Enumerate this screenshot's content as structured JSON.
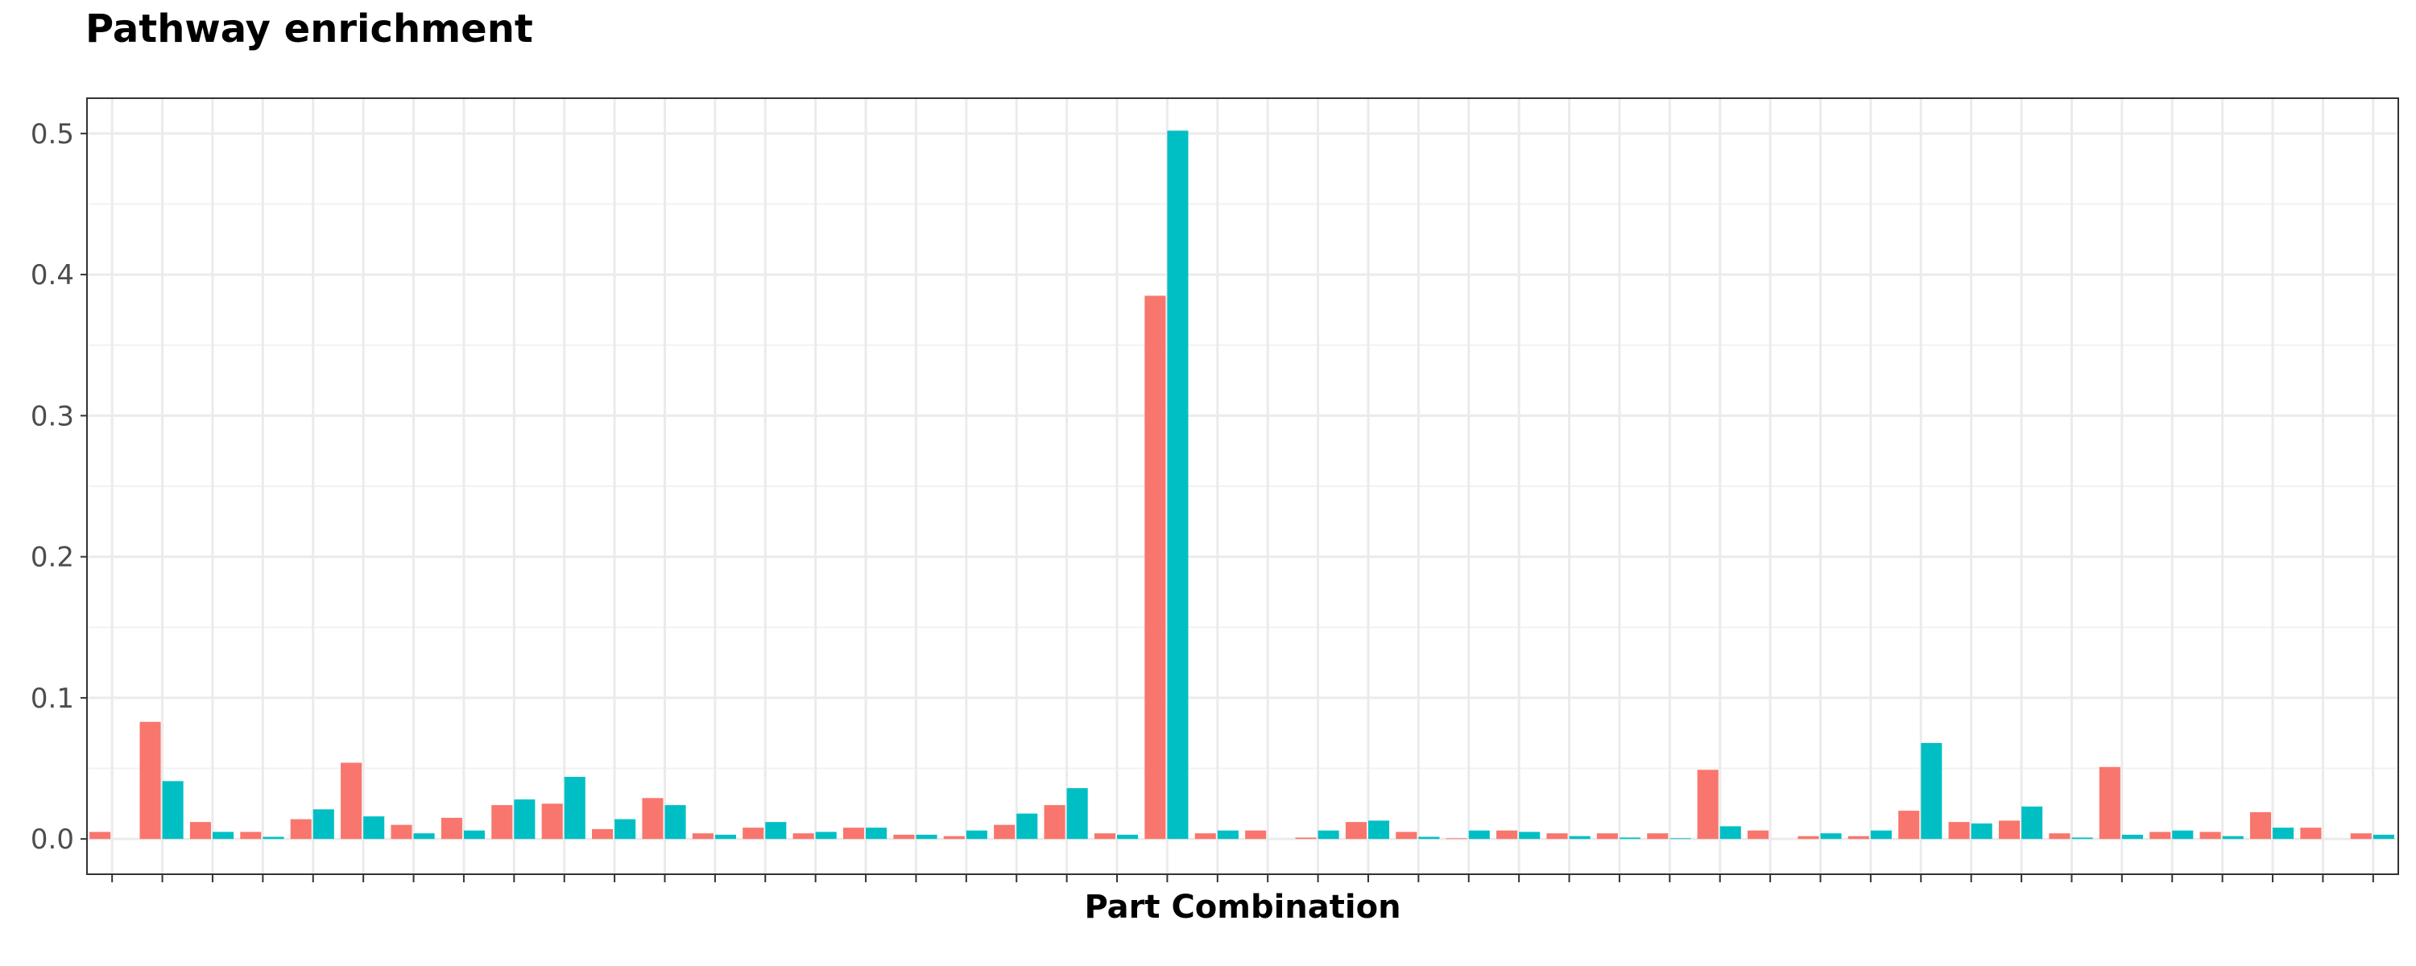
{
  "chart_data": {
    "type": "bar",
    "title": "Pathway enrichment",
    "xlabel": "Part Combination",
    "ylabel": "",
    "ylim": [
      -0.025,
      0.525
    ],
    "yticks": [
      "0.0",
      "0.1",
      "0.2",
      "0.3",
      "0.4",
      "0.5"
    ],
    "ytick_values": [
      0,
      0.1,
      0.2,
      0.3,
      0.4,
      0.5
    ],
    "grid": true,
    "legend": "none",
    "n_categories": 46,
    "series": [
      {
        "color": "#F8766D",
        "values": [
          0.005,
          0.083,
          0.012,
          0.005,
          0.014,
          0.054,
          0.01,
          0.015,
          0.024,
          0.025,
          0.007,
          0.029,
          0.004,
          0.008,
          0.004,
          0.008,
          0.003,
          0.002,
          0.01,
          0.024,
          0.004,
          0.385,
          0.004,
          0.006,
          0.001,
          0.012,
          0.005,
          0.0005,
          0.006,
          0.004,
          0.004,
          0.004,
          0.049,
          0.006,
          0.002,
          0.002,
          0.02,
          0.012,
          0.013,
          0.004,
          0.051,
          0.005,
          0.005,
          0.019,
          0.008,
          0.004
        ]
      },
      {
        "color": "#00BFC4",
        "values": [
          0.0,
          0.041,
          0.005,
          0.0015,
          0.021,
          0.016,
          0.004,
          0.006,
          0.028,
          0.044,
          0.014,
          0.024,
          0.003,
          0.012,
          0.005,
          0.008,
          0.003,
          0.006,
          0.018,
          0.036,
          0.003,
          0.502,
          0.006,
          0.0,
          0.006,
          0.013,
          0.0015,
          0.006,
          0.005,
          0.002,
          0.001,
          0.0005,
          0.009,
          0.0,
          0.004,
          0.006,
          0.068,
          0.011,
          0.023,
          0.001,
          0.003,
          0.006,
          0.002,
          0.008,
          0.0,
          0.003
        ]
      }
    ]
  }
}
